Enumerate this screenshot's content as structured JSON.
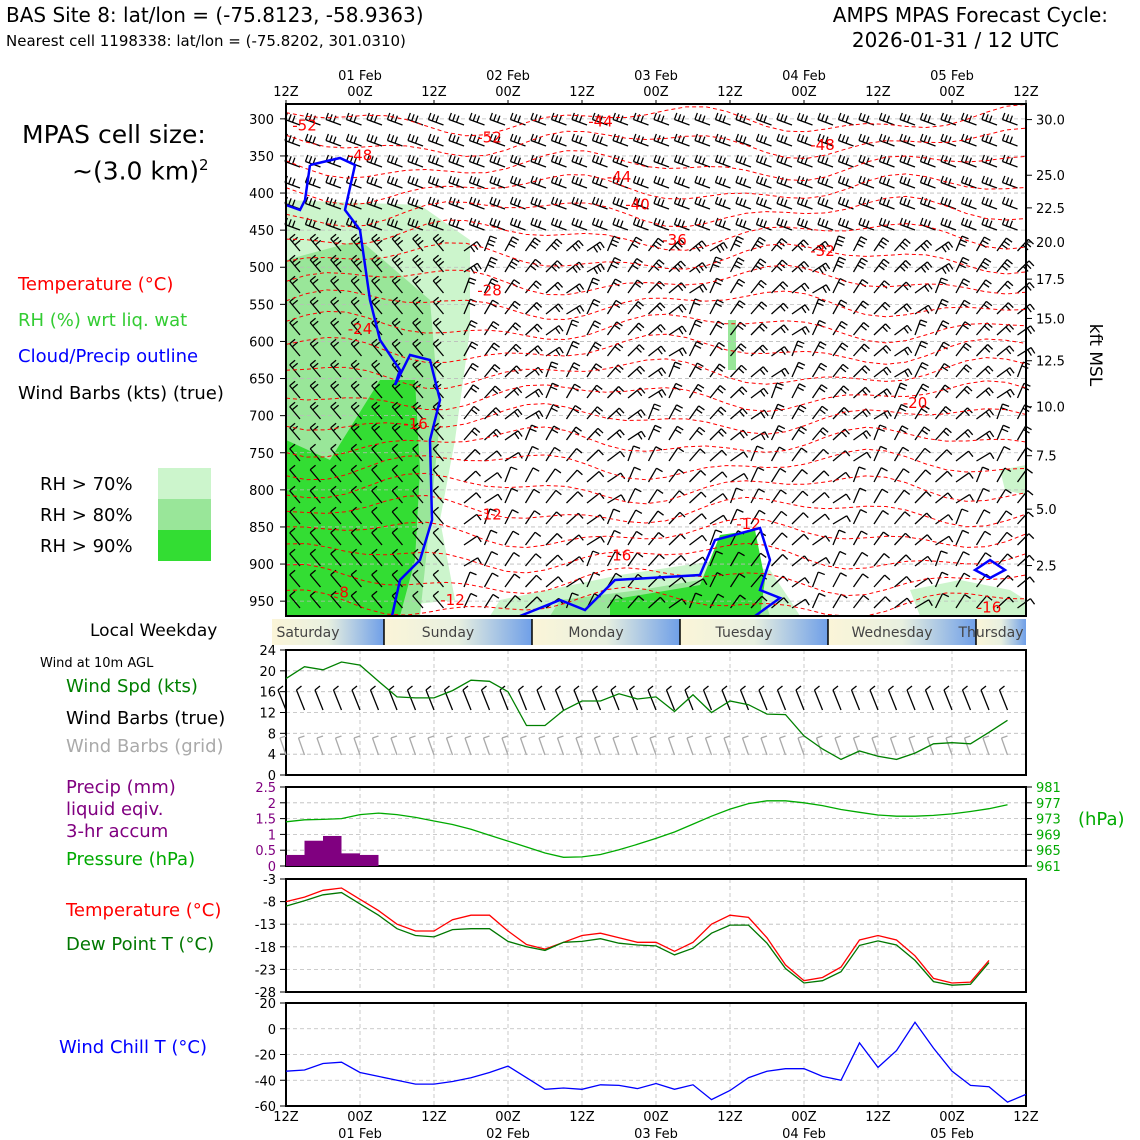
{
  "header": {
    "site_line": "BAS Site 8: lat/lon = (-75.8123, -58.9363)",
    "cell_line": "Nearest cell 1198338: lat/lon = (-75.8202, 301.0310)",
    "cycle_line1": "AMPS MPAS Forecast Cycle:",
    "cycle_line2": "2026-01-31 / 12 UTC",
    "cellsize_line1": "MPAS cell size:",
    "cellsize_line2": "~(3.0 km)",
    "cellsize_sup": "2"
  },
  "colors": {
    "temperature": "#ff0000",
    "rh": "#33cc33",
    "cloud": "#0000ff",
    "precip": "#800080",
    "pressure": "#00aa00",
    "dewpoint": "#007700",
    "windspd": "#008000",
    "gridbarb": "#aaaaaa",
    "rh70": "#ccf5cc",
    "rh80": "#99e699",
    "rh90": "#33dd33"
  },
  "time_axis": {
    "top_labels": [
      "12Z",
      "00Z",
      "12Z",
      "00Z",
      "12Z",
      "00Z",
      "12Z",
      "00Z",
      "12Z",
      "00Z",
      "12Z"
    ],
    "date_labels": [
      "01 Feb",
      "02 Feb",
      "03 Feb",
      "04 Feb",
      "05 Feb"
    ],
    "bottom_labels": [
      "12Z",
      "00Z",
      "12Z",
      "00Z",
      "12Z",
      "00Z",
      "12Z",
      "00Z",
      "12Z",
      "00Z",
      "12Z"
    ]
  },
  "legend_main": {
    "temperature": "Temperature (°C)",
    "rh": "RH (%) wrt liq. wat",
    "cloud": "Cloud/Precip outline",
    "barbs": "Wind Barbs (kts) (true)",
    "rh70": "RH > 70%",
    "rh80": "RH > 80%",
    "rh90": "RH > 90%"
  },
  "weekday_bar": {
    "label": "Local Weekday",
    "days": [
      "Saturday",
      "Sunday",
      "Monday",
      "Tuesday",
      "Wednesday",
      "Thursday"
    ]
  },
  "wind_panel": {
    "title": "Wind at 10m AGL",
    "l_speed": "Wind Spd (kts)",
    "l_true": "Wind Barbs (true)",
    "l_grid": "Wind Barbs (grid)"
  },
  "precip_panel": {
    "l1": "Precip (mm)",
    "l2": "liquid eqiv.",
    "l3": "3-hr accum",
    "l_pressure": "Pressure (hPa)",
    "unit_right": "(hPa)"
  },
  "temp_panel": {
    "l_temp": "Temperature (°C)",
    "l_dew": "Dew Point T (°C)"
  },
  "chill_panel": {
    "l_chill": "Wind Chill T (°C)"
  },
  "chart_data": [
    {
      "type": "line",
      "panel": "vertical-cross-section",
      "y_left_ticks": [
        300,
        350,
        400,
        450,
        500,
        550,
        600,
        650,
        700,
        750,
        800,
        850,
        900,
        950
      ],
      "y_right_label": "kft MSL",
      "y_right_ticks": [
        "30.0",
        "25.0",
        "22.5",
        "20.0",
        "17.5",
        "15.0",
        "12.5",
        "10.0",
        "7.5",
        "5.0",
        "2.5"
      ],
      "y_right_ticks_hpa": [
        301,
        376,
        420,
        466,
        516,
        569,
        626,
        688,
        754,
        826,
        902
      ],
      "temperature_contour_labels": [
        {
          "t": 1,
          "p": 316,
          "label": "-52"
        },
        {
          "t": 17,
          "p": 310,
          "label": "-44"
        },
        {
          "t": 11,
          "p": 332,
          "label": "-52"
        },
        {
          "t": 29,
          "p": 342,
          "label": "-48"
        },
        {
          "t": 4,
          "p": 356,
          "label": "-48"
        },
        {
          "t": 18,
          "p": 385,
          "label": "-44"
        },
        {
          "t": 19,
          "p": 422,
          "label": "-40"
        },
        {
          "t": 21,
          "p": 470,
          "label": "-36"
        },
        {
          "t": 29,
          "p": 485,
          "label": "-32"
        },
        {
          "t": 11,
          "p": 538,
          "label": "-28"
        },
        {
          "t": 4,
          "p": 590,
          "label": "-24"
        },
        {
          "t": 34,
          "p": 690,
          "label": "-20"
        },
        {
          "t": 7,
          "p": 718,
          "label": "-16"
        },
        {
          "t": 11,
          "p": 840,
          "label": "-12"
        },
        {
          "t": 25,
          "p": 853,
          "label": "-12"
        },
        {
          "t": 18,
          "p": 895,
          "label": "-16"
        },
        {
          "t": 3,
          "p": 945,
          "label": "-8"
        },
        {
          "t": 9,
          "p": 955,
          "label": "-12"
        },
        {
          "t": 38,
          "p": 965,
          "label": "-16"
        }
      ]
    },
    {
      "type": "line",
      "panel": "wind-10m",
      "ylim": [
        0,
        24
      ],
      "y_ticks": [
        0,
        4,
        8,
        12,
        16,
        20,
        24
      ],
      "x_step_hours": 3,
      "series": [
        {
          "values": [
            18.5,
            20.8,
            20.2,
            21.7,
            21.1,
            18,
            15,
            14.8,
            14.8,
            16.2,
            18.2,
            18,
            16,
            9.5,
            9.5,
            12.4,
            14.2,
            14.2,
            15.6,
            14.6,
            15,
            12.2,
            15.4,
            12,
            14.2,
            13.5,
            11.7,
            11.6,
            7.5,
            5,
            3,
            4.6,
            3.6,
            3,
            4.2,
            6,
            6.2,
            6,
            8.2,
            10.5
          ]
        }
      ]
    },
    {
      "type": "bar",
      "panel": "precip",
      "ylim": [
        0,
        2.5
      ],
      "y_ticks": [
        0,
        0.5,
        1.0,
        1.5,
        2.0,
        2.5
      ],
      "x_step_hours": 3,
      "values": [
        0.35,
        0.8,
        0.95,
        0.4,
        0.35
      ]
    },
    {
      "type": "line",
      "panel": "pressure",
      "ylim": [
        961,
        981
      ],
      "y_ticks": [
        961,
        965,
        969,
        973,
        977,
        981
      ],
      "x_step_hours": 3,
      "series": [
        {
          "values": [
            972.2,
            972.7,
            972.8,
            973,
            974,
            974.4,
            974,
            973.3,
            972.4,
            971.5,
            970.3,
            968.8,
            967.3,
            965.8,
            964.3,
            963.2,
            963.3,
            963.9,
            965.1,
            966.5,
            968,
            969.6,
            971.6,
            973.6,
            975.4,
            976.8,
            977.5,
            977.5,
            977,
            976.3,
            975.3,
            974.6,
            973.9,
            973.6,
            973.6,
            973.8,
            974.2,
            974.8,
            975.5,
            976.5
          ]
        }
      ]
    },
    {
      "type": "line",
      "panel": "temperature",
      "ylim": [
        -28,
        -3
      ],
      "y_ticks": [
        -28,
        -23,
        -18,
        -13,
        -8,
        -3
      ],
      "x_step_hours": 3,
      "series": [
        {
          "name": "Temperature (°C)",
          "values": [
            -8,
            -7,
            -5.5,
            -5,
            -7.5,
            -10,
            -13,
            -14.5,
            -14.5,
            -12,
            -11,
            -11,
            -14.5,
            -17.5,
            -18.5,
            -17,
            -15.5,
            -15,
            -16,
            -17,
            -17,
            -19,
            -17,
            -13,
            -11,
            -11.5,
            -16,
            -22,
            -25.5,
            -24.8,
            -22.5,
            -16.5,
            -15.5,
            -16.5,
            -20,
            -25,
            -26,
            -25.8,
            -21
          ]
        },
        {
          "name": "Dew Point T (°C)",
          "values": [
            -9,
            -7.8,
            -6.5,
            -6,
            -8.5,
            -11,
            -14,
            -15.5,
            -15.8,
            -14.2,
            -14,
            -14,
            -16.8,
            -18,
            -18.8,
            -17,
            -16.8,
            -16.2,
            -17.2,
            -17.6,
            -17.8,
            -19.8,
            -18.3,
            -15,
            -13.2,
            -13.2,
            -17.2,
            -22.8,
            -26,
            -25.5,
            -23.5,
            -17.7,
            -16.7,
            -17.6,
            -21,
            -25.7,
            -26.5,
            -26.3,
            -21.5
          ]
        }
      ]
    },
    {
      "type": "line",
      "panel": "wind-chill",
      "ylim": [
        -60,
        20
      ],
      "y_ticks": [
        -60,
        -40,
        -20,
        0,
        20
      ],
      "x_step_hours": 3,
      "series": [
        {
          "name": "Wind Chill T (°C)",
          "values": [
            -33,
            -32,
            -27,
            -26,
            -34,
            -37,
            -40,
            -43,
            -43,
            -41,
            -38,
            -34,
            -29,
            -38,
            -47,
            -46,
            -47,
            -43.5,
            -44,
            -46.5,
            -42.5,
            -47,
            -43.5,
            -55,
            -48,
            -38,
            -33,
            -31,
            -31,
            -37,
            -40,
            -11,
            -30,
            -17,
            5,
            -15,
            -33,
            -44,
            -45,
            -57,
            -51
          ]
        }
      ]
    }
  ]
}
